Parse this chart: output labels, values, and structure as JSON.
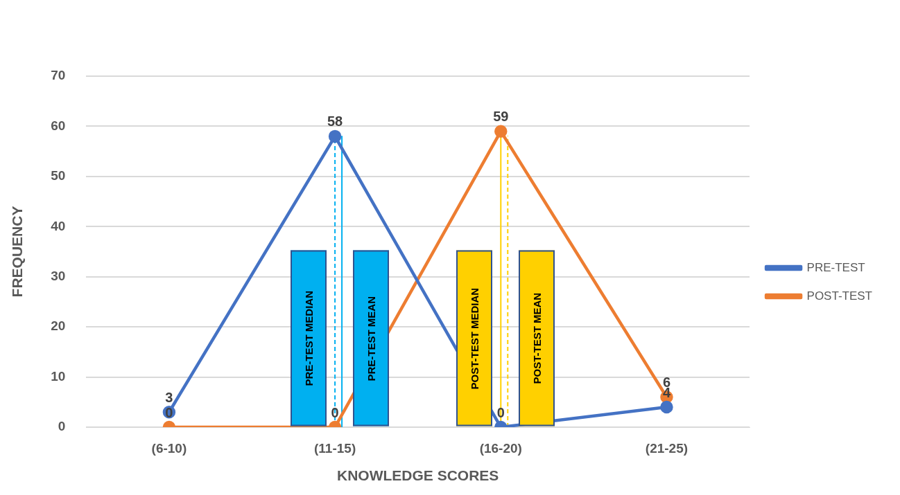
{
  "chart_data": {
    "type": "line",
    "xlabel": "KNOWLEDGE SCORES",
    "ylabel": "FREQUENCY",
    "categories": [
      "(6-10)",
      "(11-15)",
      "(16-20)",
      "(21-25)"
    ],
    "series": [
      {
        "name": "PRE-TEST",
        "color": "#4472c4",
        "values": [
          3,
          58,
          0,
          4
        ]
      },
      {
        "name": "POST-TEST",
        "color": "#ed7d31",
        "values": [
          0,
          0,
          59,
          6
        ]
      }
    ],
    "ylim": [
      0,
      70
    ],
    "yticks": [
      0,
      10,
      20,
      30,
      40,
      50,
      60,
      70
    ],
    "grid": "y",
    "legend": "right",
    "marker": "circle",
    "line_style": "solid",
    "data_labels": true,
    "ref_lines": [
      {
        "axis": "x",
        "value": "(11-15)",
        "label": "PRE-TEST MEDIAN",
        "color": "#00b0f0",
        "line_style": "dashed"
      },
      {
        "axis": "x",
        "value": "(11-15)",
        "label": "PRE-TEST MEAN",
        "color": "#00b0f0",
        "line_style": "solid"
      },
      {
        "axis": "x",
        "value": "(16-20)",
        "label": "POST-TEST MEDIAN",
        "color": "#ffd000",
        "line_style": "solid"
      },
      {
        "axis": "x",
        "value": "(16-20)",
        "label": "POST-TEST MEAN",
        "color": "#ffd000",
        "line_style": "dashed"
      }
    ]
  }
}
